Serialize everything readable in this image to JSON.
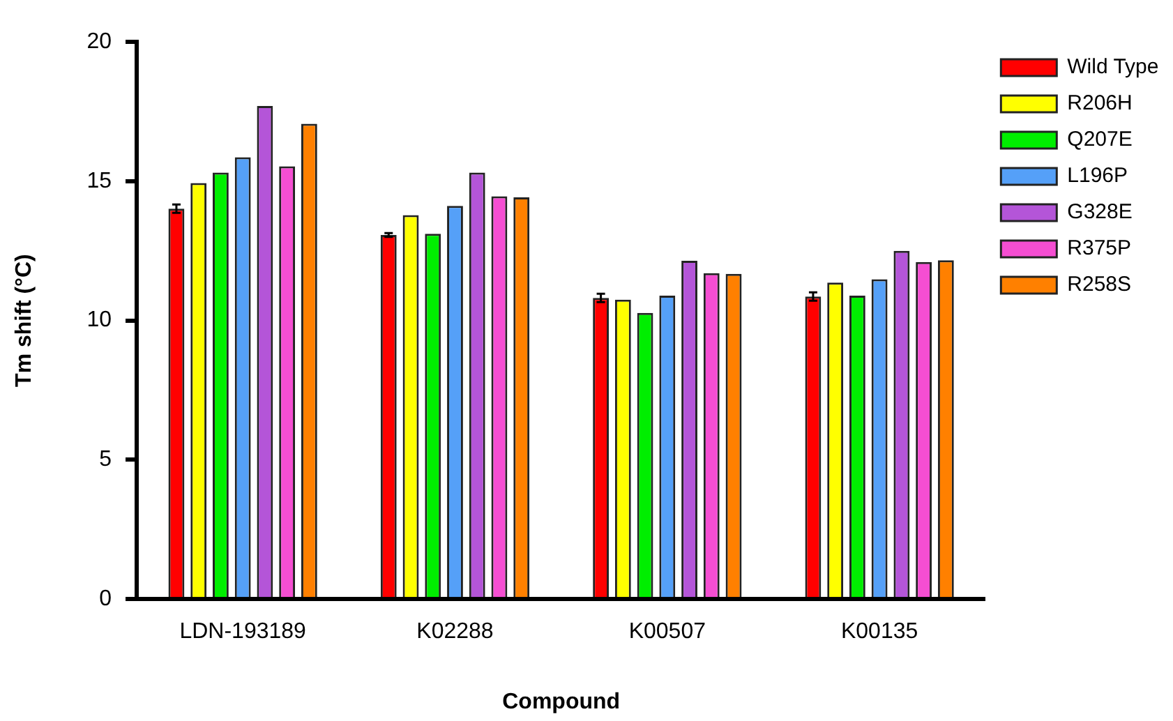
{
  "chart_data": {
    "type": "bar",
    "xlabel": "Compound",
    "ylabel": "Tm shift (°C)",
    "categories": [
      "LDN-193189",
      "K02288",
      "K00507",
      "K00135"
    ],
    "series": [
      {
        "name": "Wild Type",
        "color": "#ff0000",
        "values": [
          14.01,
          13.07,
          10.81,
          10.86
        ],
        "errors": [
          0.15,
          0.07,
          0.15,
          0.15
        ]
      },
      {
        "name": "R206H",
        "color": "#ffff00",
        "values": [
          14.93,
          13.78,
          10.75,
          11.36
        ]
      },
      {
        "name": "Q207E",
        "color": "#00ee00",
        "values": [
          15.31,
          13.11,
          10.27,
          10.89
        ]
      },
      {
        "name": "L196P",
        "color": "#55a0f8",
        "values": [
          15.86,
          14.11,
          10.89,
          11.48
        ]
      },
      {
        "name": "G328E",
        "color": "#b455d8",
        "values": [
          17.7,
          15.31,
          12.14,
          12.5
        ]
      },
      {
        "name": "R375P",
        "color": "#f54ed2",
        "values": [
          15.53,
          14.46,
          11.7,
          12.1
        ]
      },
      {
        "name": "R258S",
        "color": "#ff8000",
        "values": [
          17.06,
          14.42,
          11.67,
          12.16
        ]
      }
    ],
    "ylim": [
      0,
      20
    ],
    "yticks": [
      0,
      5,
      10,
      15,
      20
    ],
    "grid": false,
    "legend": "top right"
  }
}
